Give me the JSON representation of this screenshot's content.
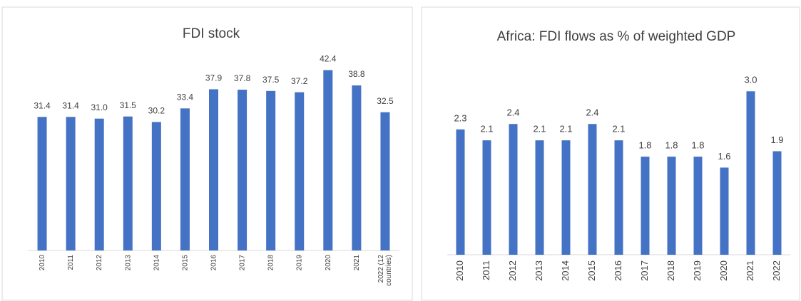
{
  "chart_data": [
    {
      "type": "bar",
      "title": "FDI stock",
      "categories": [
        "2010",
        "2011",
        "2012",
        "2013",
        "2014",
        "2015",
        "2016",
        "2017",
        "2018",
        "2019",
        "2020",
        "2021",
        "2022 (12 countries)"
      ],
      "values": [
        31.4,
        31.4,
        31.0,
        31.5,
        30.2,
        33.4,
        37.9,
        37.8,
        37.5,
        37.2,
        42.4,
        38.8,
        32.5
      ],
      "value_labels": [
        "31.4",
        "31.4",
        "31.0",
        "31.5",
        "30.2",
        "33.4",
        "37.9",
        "37.8",
        "37.5",
        "37.2",
        "42.4",
        "38.8",
        "32.5"
      ],
      "color": "#4472c4",
      "ylim": [
        0,
        45
      ]
    },
    {
      "type": "bar",
      "title": "Africa: FDI flows as % of weighted GDP",
      "categories": [
        "2010",
        "2011",
        "2012",
        "2013",
        "2014",
        "2015",
        "2016",
        "2017",
        "2018",
        "2019",
        "2020",
        "2021",
        "2022"
      ],
      "values": [
        2.3,
        2.1,
        2.4,
        2.1,
        2.1,
        2.4,
        2.1,
        1.8,
        1.8,
        1.8,
        1.6,
        3.0,
        1.9
      ],
      "value_labels": [
        "2.3",
        "2.1",
        "2.4",
        "2.1",
        "2.1",
        "2.4",
        "2.1",
        "1.8",
        "1.8",
        "1.8",
        "1.6",
        "3.0",
        "1.9"
      ],
      "color": "#4472c4",
      "ylim": [
        0,
        3.5
      ]
    }
  ]
}
